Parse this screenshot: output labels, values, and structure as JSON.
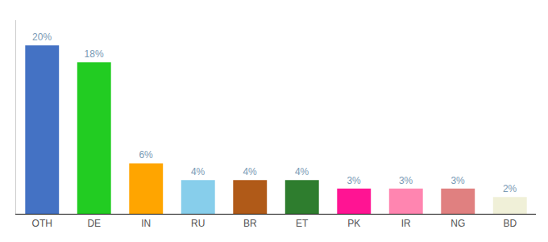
{
  "chart_data": {
    "type": "bar",
    "categories": [
      "OTH",
      "DE",
      "IN",
      "RU",
      "BR",
      "ET",
      "PK",
      "IR",
      "NG",
      "BD"
    ],
    "values": [
      20,
      18,
      6,
      4,
      4,
      4,
      3,
      3,
      3,
      2
    ],
    "value_labels": [
      "20%",
      "18%",
      "6%",
      "4%",
      "4%",
      "4%",
      "3%",
      "3%",
      "3%",
      "2%"
    ],
    "colors": [
      "#4472c4",
      "#22cc22",
      "#ffa500",
      "#87ceeb",
      "#b05a18",
      "#2e7d2e",
      "#ff1493",
      "#ff85b0",
      "#e08080",
      "#f0f0d8"
    ],
    "ylim": [
      0,
      23
    ],
    "data_labels": true,
    "grid": false,
    "tick_labels": "x"
  }
}
